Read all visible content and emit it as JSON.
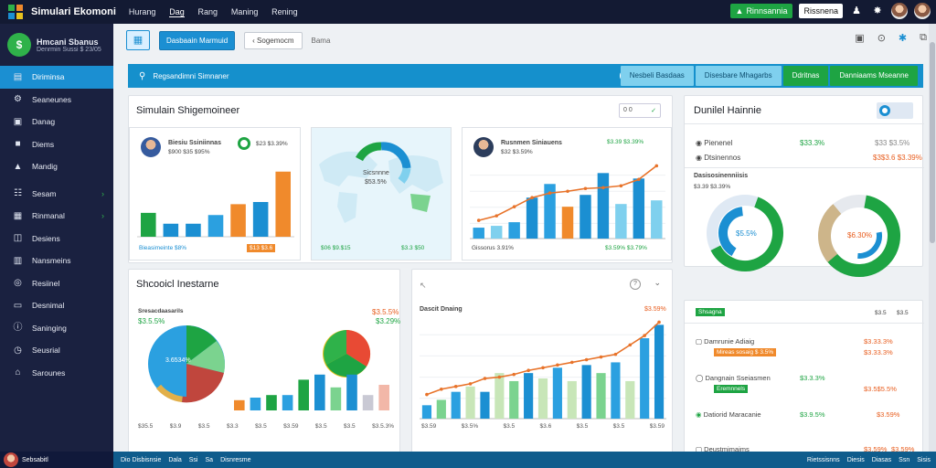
{
  "topbar": {
    "brand": "Simulari Ekomoni",
    "nav": [
      "Hurang",
      "Dag",
      "Rang",
      "Maning",
      "Rening"
    ],
    "green_button": "Rinnsannia",
    "outline_button": "Rissnena"
  },
  "sidebar": {
    "profile_name": "Hmcani Sbanus",
    "profile_sub": "Denrmin Sussi $ 23/05",
    "items": [
      {
        "label": "Diriminsa",
        "icon": "chart-icon"
      },
      {
        "label": "Seaneunes",
        "icon": "gear-icon"
      },
      {
        "label": "Danag",
        "icon": "inbox-icon"
      },
      {
        "label": "Diems",
        "icon": "message-icon"
      },
      {
        "label": "Mandig",
        "icon": "warning-icon"
      },
      {
        "label": "Sesam",
        "icon": "grid-icon"
      },
      {
        "label": "Rinmanal",
        "icon": "store-icon"
      },
      {
        "label": "Desiens",
        "icon": "doc-icon"
      },
      {
        "label": "Nansmeins",
        "icon": "calendar-icon"
      },
      {
        "label": "Resiinel",
        "icon": "sync-icon"
      },
      {
        "label": "Desnimal",
        "icon": "card-icon"
      },
      {
        "label": "Saninging",
        "icon": "info-icon"
      },
      {
        "label": "Seusrial",
        "icon": "clock-icon"
      },
      {
        "label": "Sarounes",
        "icon": "home-icon"
      }
    ]
  },
  "toolbar": {
    "primary": "Dasbaain Marmuid",
    "secondary": "Sogemocm",
    "text": "Bama"
  },
  "bluebar": {
    "search_text": "Regsandimni Simnaner",
    "buttons": [
      "Nesbeli Basdaas",
      "Disesbare Mhagarbs",
      "Ddritnas",
      "Danniaams Mseanne"
    ]
  },
  "sim_panel": {
    "title": "Simulain Shigemoineer",
    "toggle": "0 0",
    "cards": [
      {
        "name": "Biesiu Ssiniinnas",
        "sub": "$900 $35 $95%",
        "value": "$23 $3.39%",
        "footer_left": "Bieasimeinte $8%",
        "footer_right": "$13 $3.6"
      },
      {
        "name": "Sicsnnne",
        "value": "$53.5%",
        "footer_left": "$06 $9.$15",
        "footer_right": "$3.3 $50"
      },
      {
        "name": "Rusnmen Siniauens",
        "sub": "$32 $3.59%",
        "value": "$3.39 $3.39%",
        "footer_left": "Gissorus 3.91%",
        "footer_right": "$3.59% $3.79%"
      }
    ]
  },
  "detail_panel": {
    "title": "Dunilel Hainnie",
    "rows": [
      {
        "label": "Pienenel",
        "value": "$33.3%",
        "right": "$33 $3.5%"
      },
      {
        "label": "Dtsinennos",
        "value": "$3.39%",
        "right": "$3$3.6 $3.39%"
      },
      {
        "label": "Dasisosinenniisis",
        "value": "$3.39 $3.39%",
        "right": ""
      }
    ],
    "donut_left": "$5.5%",
    "donut_right": "$6.30%",
    "legend_left": "Shauwl $3.5 $3.5%",
    "legend_mid": "$6.5 $3.5%",
    "legend_right": "$3.5% $3.5%"
  },
  "fin_panel": {
    "title": "Shcooicl Inestarne",
    "legend": "Sresacdaasarils",
    "legend_value": "$3.5.5%",
    "pie_label": "3.6534%",
    "right_value": "$3.5.5%",
    "right_sub": "$3.29%",
    "axis": [
      "$35.5",
      "$3.9",
      "$3.5",
      "$3.3",
      "$3.5",
      "$3.59",
      "$3.5",
      "$3.5",
      "$3.5.3%"
    ]
  },
  "trend_panel": {
    "title": "Dascit Dnaing",
    "right_value": "$3.59%",
    "axis": [
      "$3.59",
      "$3.5%",
      "$3.5",
      "$3.6",
      "$3.5",
      "$3.5",
      "$3.59"
    ]
  },
  "list_panel": {
    "top_badge": "Shsagna",
    "top_values": [
      "$3.5",
      "$3.5"
    ],
    "items": [
      {
        "title": "Damrunie Adiaig",
        "tag": "Mireas sosaig $ 3.5%",
        "value": "$3.33.3%",
        "right": "$3.33.3%"
      },
      {
        "title": "Dangnain Sseiasmen",
        "tag": "Eremnnels",
        "value": "$3.3.3%",
        "right": "$3.5$5.5%"
      },
      {
        "title": "Datiorid Maracanie",
        "tag": "",
        "value": "$3.9.5%",
        "right": "$3.59%"
      },
      {
        "title": "Deustmimaims",
        "tag": "",
        "value": "$3.59%",
        "right": "$3.59%"
      }
    ]
  },
  "statusbar": {
    "left": "Sebsabitl",
    "items": [
      "Dio Disbisnsie",
      "Dala",
      "Ssi",
      "Sa",
      "Disnresme"
    ],
    "right": [
      "Rietssisnns",
      "Diesis",
      "Diasas",
      "Ssn",
      "Sisis"
    ]
  },
  "chart_data": [
    {
      "type": "bar",
      "categories": [
        "1",
        "2",
        "3",
        "4",
        "5",
        "6",
        "7"
      ],
      "values": [
        22,
        12,
        12,
        20,
        30,
        32,
        60
      ],
      "colors": [
        "#1ea443",
        "#1b8fd2",
        "#1b8fd2",
        "#2ba0e0",
        "#f08a2c",
        "#1b8fd2",
        "#f08a2c"
      ]
    },
    {
      "type": "line",
      "x": [
        1,
        2,
        3,
        4,
        5,
        6,
        7,
        8,
        9,
        10,
        11
      ],
      "bars": [
        12,
        14,
        18,
        45,
        60,
        35,
        48,
        72,
        38,
        66,
        42
      ],
      "line": [
        20,
        25,
        35,
        45,
        50,
        52,
        55,
        56,
        58,
        65,
        80
      ]
    },
    {
      "type": "bar",
      "categories": [
        "a",
        "b",
        "c",
        "d",
        "e",
        "f",
        "g",
        "h",
        "i",
        "j"
      ],
      "values": [
        4,
        5,
        6,
        6,
        12,
        14,
        9,
        14,
        6,
        10
      ]
    },
    {
      "type": "line",
      "x": [
        1,
        2,
        3,
        4,
        5,
        6,
        7,
        8,
        9,
        10,
        11,
        12,
        13,
        14,
        15,
        16,
        17
      ],
      "bars": [
        10,
        14,
        20,
        24,
        20,
        34,
        28,
        34,
        30,
        38,
        28,
        40,
        34,
        42,
        28,
        60,
        70
      ],
      "line": [
        18,
        22,
        24,
        26,
        30,
        31,
        33,
        36,
        38,
        40,
        42,
        44,
        46,
        48,
        55,
        62,
        72
      ]
    }
  ]
}
